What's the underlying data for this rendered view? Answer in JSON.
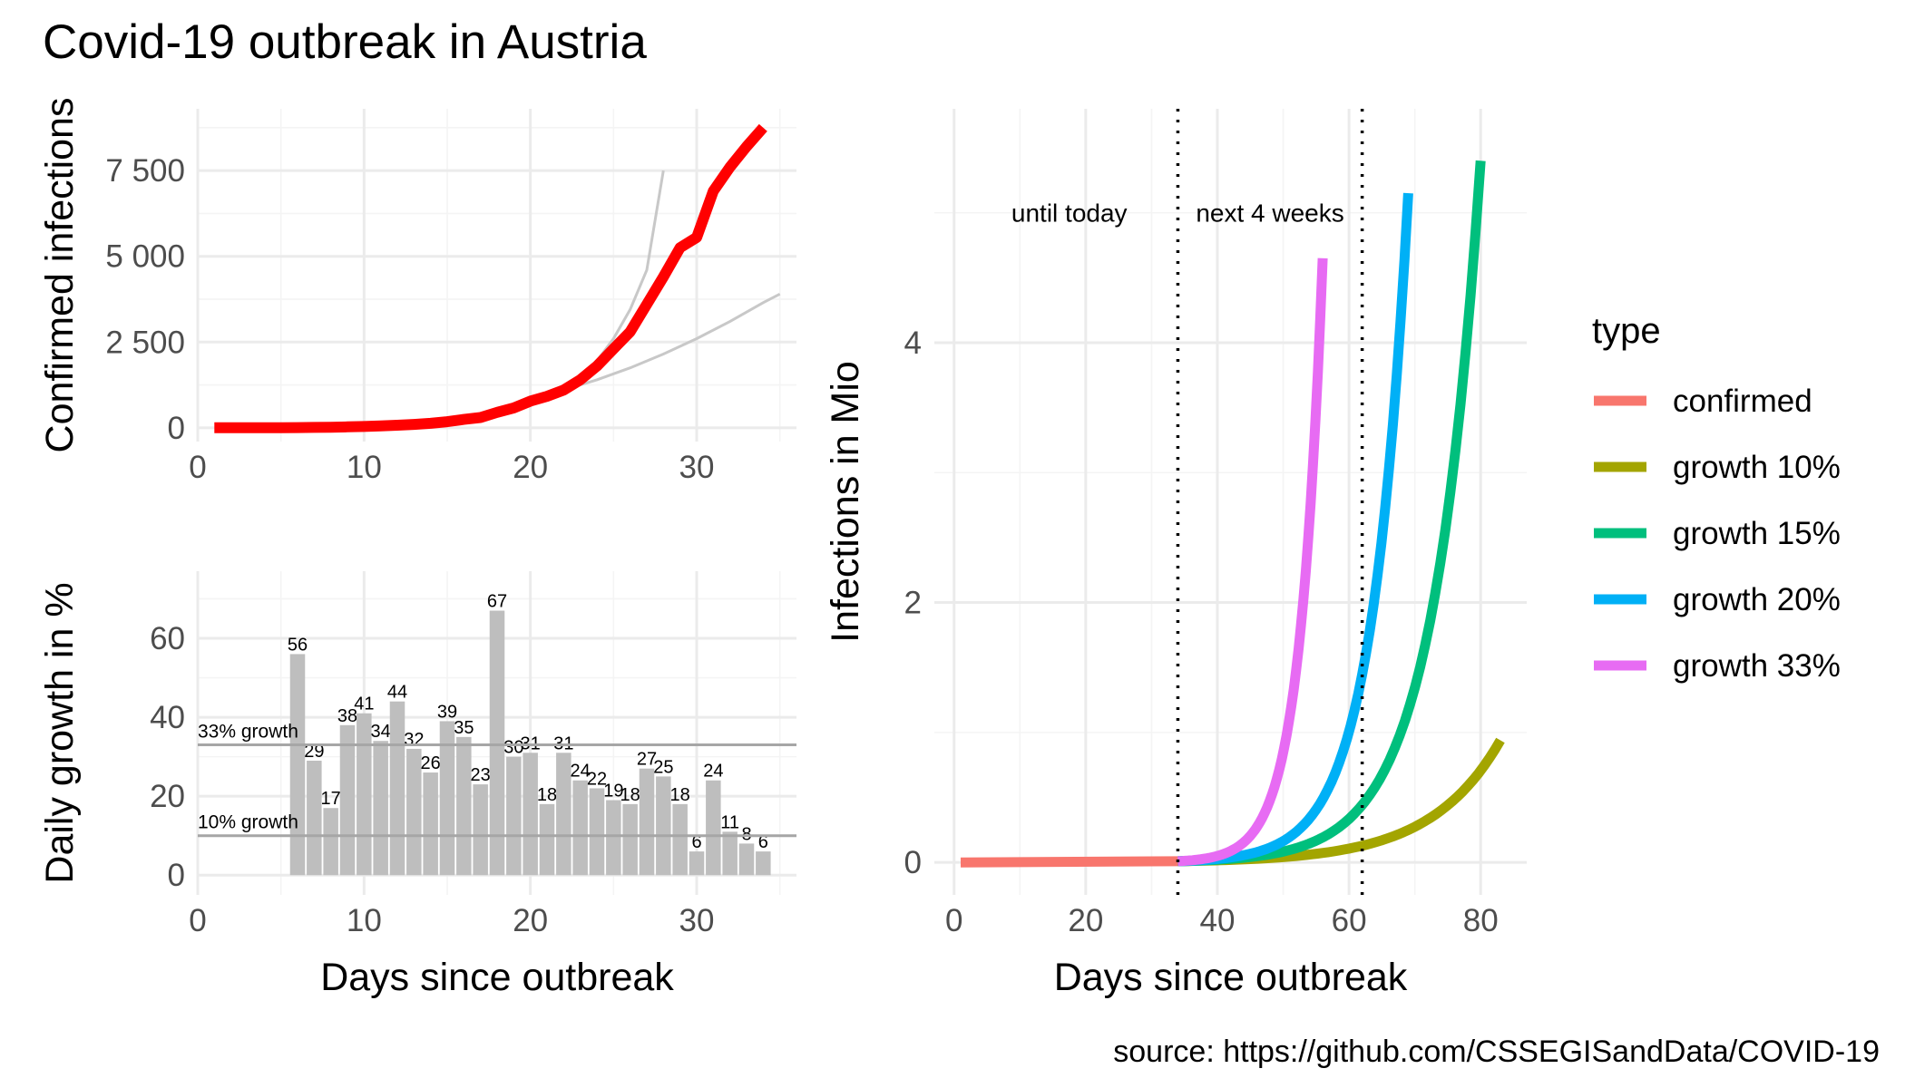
{
  "title": "Covid-19 outbreak in Austria",
  "source": "source: https://github.com/CSSEGISandData/COVID-19",
  "chart_data": [
    {
      "type": "line",
      "ylabel": "Confirmed infections",
      "xlim": [
        0,
        36
      ],
      "ylim": [
        -400,
        9300
      ],
      "xticks": [
        {
          "v": 0,
          "label": "0"
        },
        {
          "v": 10,
          "label": "10"
        },
        {
          "v": 20,
          "label": "20"
        },
        {
          "v": 30,
          "label": "30"
        }
      ],
      "yticks": [
        {
          "v": 0,
          "label": "0"
        },
        {
          "v": 2500,
          "label": "2 500"
        },
        {
          "v": 5000,
          "label": "5 000"
        },
        {
          "v": 7500,
          "label": "7 500"
        }
      ],
      "grid": true,
      "confirmed": {
        "color": "#ff0000",
        "x": [
          1,
          2,
          3,
          4,
          5,
          6,
          7,
          8,
          9,
          10,
          11,
          12,
          13,
          14,
          15,
          16,
          17,
          18,
          19,
          20,
          21,
          22,
          23,
          24,
          25,
          26,
          27,
          28,
          29,
          30,
          31,
          32,
          33,
          34
        ],
        "y": [
          2,
          2,
          3,
          4,
          5,
          8,
          12,
          18,
          28,
          40,
          55,
          75,
          100,
          130,
          180,
          245,
          300,
          450,
          580,
          780,
          920,
          1100,
          1400,
          1800,
          2300,
          2800,
          3600,
          4400,
          5250,
          5550,
          6900,
          7600,
          8200,
          8750
        ]
      },
      "projections": [
        {
          "color": "#c8c8c8",
          "x": [
            22,
            23,
            24,
            25,
            26,
            27,
            28
          ],
          "y": [
            1100,
            1470,
            1950,
            2600,
            3450,
            4600,
            7500
          ]
        },
        {
          "color": "#c8c8c8",
          "x": [
            22,
            24,
            26,
            28,
            30,
            32,
            34,
            35
          ],
          "y": [
            1100,
            1400,
            1750,
            2150,
            2600,
            3100,
            3650,
            3900
          ]
        }
      ]
    },
    {
      "type": "bar",
      "ylabel": "Daily growth in %",
      "xlabel": "Days since outbreak",
      "xlim": [
        0,
        36
      ],
      "ylim": [
        -5,
        77
      ],
      "xticks": [
        {
          "v": 0,
          "label": "0"
        },
        {
          "v": 10,
          "label": "10"
        },
        {
          "v": 20,
          "label": "20"
        },
        {
          "v": 30,
          "label": "30"
        }
      ],
      "yticks": [
        {
          "v": 0,
          "label": "0"
        },
        {
          "v": 20,
          "label": "20"
        },
        {
          "v": 40,
          "label": "40"
        },
        {
          "v": 60,
          "label": "60"
        }
      ],
      "grid": true,
      "bar_color": "#bebebe",
      "x": [
        6,
        7,
        8,
        9,
        10,
        11,
        12,
        13,
        14,
        15,
        16,
        17,
        18,
        19,
        20,
        21,
        22,
        23,
        24,
        25,
        26,
        27,
        28,
        29,
        30,
        31,
        32,
        33,
        34
      ],
      "values": [
        56,
        29,
        17,
        38,
        41,
        34,
        44,
        32,
        26,
        39,
        35,
        23,
        67,
        30,
        31,
        18,
        31,
        24,
        22,
        19,
        18,
        27,
        25,
        18,
        6,
        24,
        11,
        8,
        6
      ],
      "reference_lines": [
        {
          "value": 33,
          "label": "33% growth",
          "color": "#a6a6a6"
        },
        {
          "value": 10,
          "label": "10% growth",
          "color": "#a6a6a6"
        }
      ]
    },
    {
      "type": "line",
      "ylabel": "Infections in Mio",
      "xlabel": "Days since outbreak",
      "xlim": [
        -3,
        87
      ],
      "ylim": [
        -0.25,
        5.8
      ],
      "xticks": [
        {
          "v": 0,
          "label": "0"
        },
        {
          "v": 20,
          "label": "20"
        },
        {
          "v": 40,
          "label": "40"
        },
        {
          "v": 60,
          "label": "60"
        },
        {
          "v": 80,
          "label": "80"
        }
      ],
      "yticks": [
        {
          "v": 0,
          "label": "0"
        },
        {
          "v": 2,
          "label": "2"
        },
        {
          "v": 4,
          "label": "4"
        }
      ],
      "grid": true,
      "vlines": [
        34,
        62
      ],
      "annotations": [
        {
          "x": 17.5,
          "y": 5.0,
          "text": "until today"
        },
        {
          "x": 48,
          "y": 5.0,
          "text": "next 4 weeks"
        }
      ],
      "series": [
        {
          "name": "confirmed",
          "color": "#f8766d",
          "x": [
            1,
            34
          ],
          "y": [
            0.0,
            0.009
          ]
        },
        {
          "name": "growth 10%",
          "color": "#a3a500",
          "x": [
            34,
            83
          ],
          "y": [
            0.009,
            0.94
          ]
        },
        {
          "name": "growth 15%",
          "color": "#00bf7d",
          "x": [
            34,
            80
          ],
          "y": [
            0.009,
            5.4
          ]
        },
        {
          "name": "growth 20%",
          "color": "#00b0f6",
          "x": [
            34,
            69
          ],
          "y": [
            0.009,
            5.15
          ]
        },
        {
          "name": "growth 33%",
          "color": "#e76bf3",
          "x": [
            34,
            56
          ],
          "y": [
            0.009,
            4.65
          ]
        }
      ],
      "legend": {
        "title": "type",
        "position": "right"
      }
    }
  ]
}
